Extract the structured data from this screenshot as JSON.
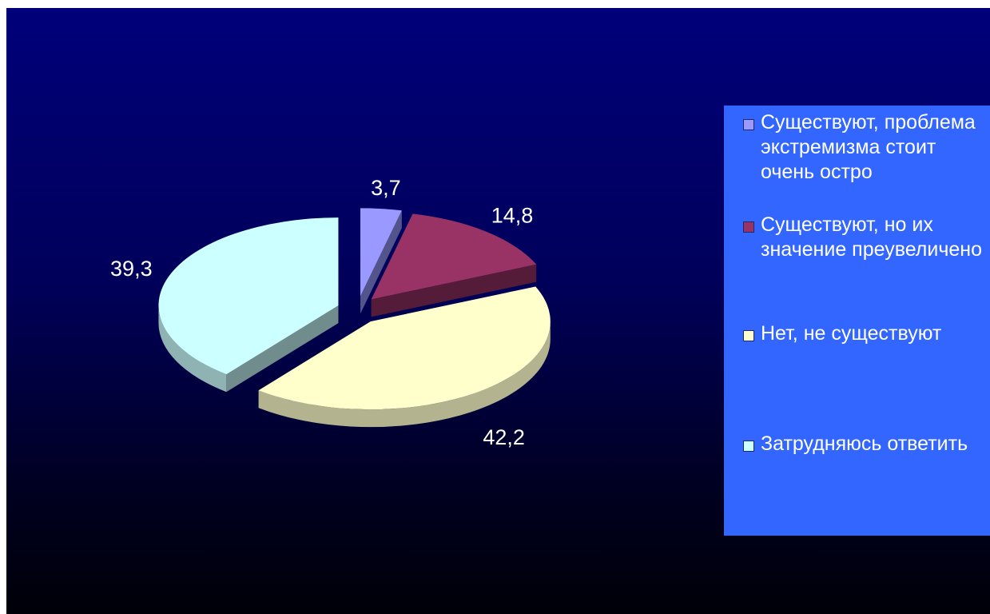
{
  "chart_data": {
    "type": "pie",
    "title": "",
    "categories": [
      "Существуют, проблема экстремизма стоит очень остро",
      "Существуют, но их значение преувеличено",
      "Нет, не существуют",
      "Затрудняюсь ответить"
    ],
    "values": [
      3.7,
      14.8,
      42.2,
      39.3
    ],
    "data_labels": [
      "3,7",
      "14,8",
      "42,2",
      "39,3"
    ],
    "colors": [
      "#9999ff",
      "#993366",
      "#ffffcc",
      "#ccffff"
    ],
    "exploded": true,
    "three_d": true,
    "legend_position": "right"
  },
  "legend": {
    "items": [
      {
        "label": "Существуют, проблема экстремизма стоит очень остро",
        "color": "#9999ff"
      },
      {
        "label": "Существуют, но их значение преувеличено",
        "color": "#993366"
      },
      {
        "label": "Нет, не существуют",
        "color": "#ffffcc"
      },
      {
        "label": "Затрудняюсь ответить",
        "color": "#ccffff"
      }
    ]
  }
}
